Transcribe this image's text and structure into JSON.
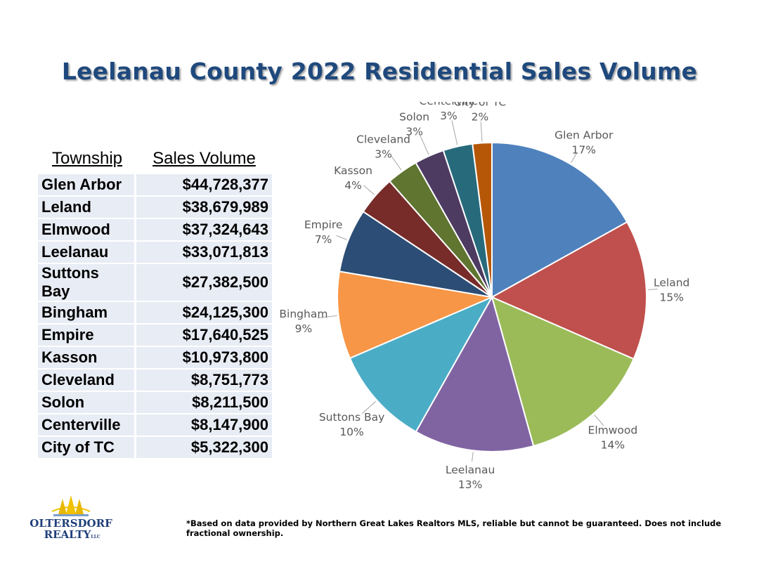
{
  "title": "Leelanau County 2022 Residential Sales Volume",
  "table": {
    "headers": [
      "Township",
      "Sales Volume"
    ],
    "rows": [
      {
        "township": "Glen Arbor",
        "sales": "$44,728,377"
      },
      {
        "township": "Leland",
        "sales": "$38,679,989"
      },
      {
        "township": "Elmwood",
        "sales": "$37,324,643"
      },
      {
        "township": "Leelanau",
        "sales": "$33,071,813"
      },
      {
        "township": "Suttons Bay",
        "sales": "$27,382,500"
      },
      {
        "township": "Bingham",
        "sales": "$24,125,300"
      },
      {
        "township": "Empire",
        "sales": "$17,640,525"
      },
      {
        "township": "Kasson",
        "sales": "$10,973,800"
      },
      {
        "township": "Cleveland",
        "sales": "$8,751,773"
      },
      {
        "township": "Solon",
        "sales": "$8,211,500"
      },
      {
        "township": "Centerville",
        "sales": "$8,147,900"
      },
      {
        "township": "City of TC",
        "sales": "$5,322,300"
      }
    ]
  },
  "chart_data": {
    "type": "pie",
    "title": "",
    "categories": [
      "Glen Arbor",
      "Leland",
      "Elmwood",
      "Leelanau",
      "Suttons Bay",
      "Bingham",
      "Empire",
      "Kasson",
      "Cleveland",
      "Solon",
      "Centerville",
      "City of TC"
    ],
    "values": [
      44728377,
      38679989,
      37324643,
      33071813,
      27382500,
      24125300,
      17640525,
      10973800,
      8751773,
      8211500,
      8147900,
      5322300
    ],
    "percent_labels": [
      "17%",
      "15%",
      "14%",
      "13%",
      "10%",
      "9%",
      "7%",
      "4%",
      "3%",
      "3%",
      "3%",
      "2%"
    ],
    "colors": [
      "#4f81bd",
      "#c0504d",
      "#9bbb59",
      "#8064a2",
      "#4bacc6",
      "#f79646",
      "#2c4d75",
      "#772c2a",
      "#5f7530",
      "#4d3b62",
      "#276a7c",
      "#b65708"
    ],
    "start": "12 o'clock, clockwise"
  },
  "logo": {
    "line1": "OLTERSDORF",
    "line2": "REALTY",
    "suffix": "LLC"
  },
  "footnote": "*Based on data provided by Northern Great Lakes Realtors MLS, reliable but cannot be guaranteed. Does not include fractional ownership."
}
